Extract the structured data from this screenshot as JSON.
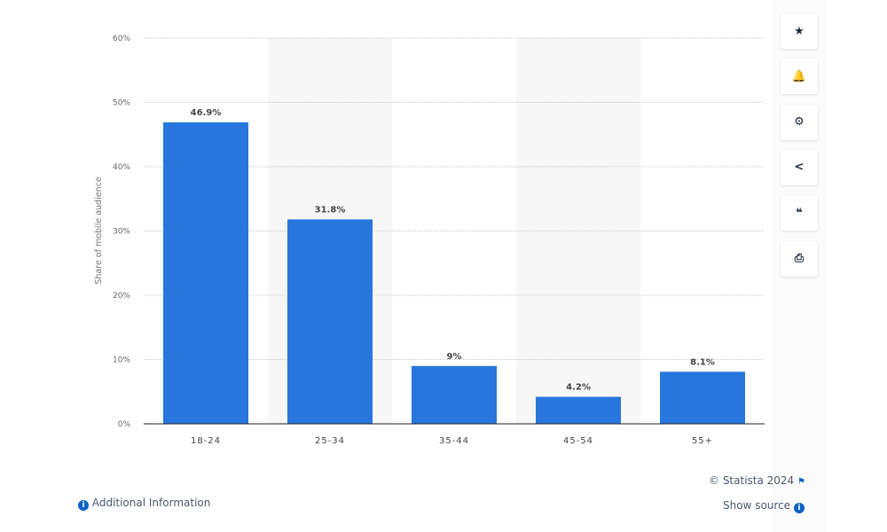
{
  "chart_data": {
    "type": "bar",
    "categories": [
      "18-24",
      "25-34",
      "35-44",
      "45-54",
      "55+"
    ],
    "values": [
      46.9,
      31.8,
      9,
      4.2,
      8.1
    ],
    "value_labels": [
      "46.9%",
      "31.8%",
      "9%",
      "4.2%",
      "8.1%"
    ],
    "ylabel": "Share of mobile audience",
    "xlabel": "",
    "ylim": [
      0,
      60
    ],
    "yticks": [
      "0%",
      "10%",
      "20%",
      "30%",
      "40%",
      "50%",
      "60%"
    ],
    "grid": true,
    "bar_color": "#2876dd"
  },
  "sidebar": {
    "buttons": [
      {
        "name": "favorite",
        "glyph": "★"
      },
      {
        "name": "notification",
        "glyph": "🔔"
      },
      {
        "name": "settings",
        "glyph": "⚙"
      },
      {
        "name": "share",
        "glyph": "<"
      },
      {
        "name": "cite",
        "glyph": "❝"
      },
      {
        "name": "print",
        "glyph": "⎙"
      }
    ]
  },
  "footer": {
    "additional_info": "Additional Information",
    "copyright": "© Statista 2024",
    "show_source": "Show source"
  }
}
